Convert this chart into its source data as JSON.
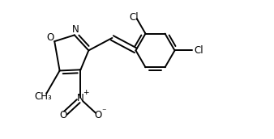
{
  "background_color": "#ffffff",
  "line_color": "#000000",
  "line_width": 1.4,
  "font_size": 8.5,
  "fig_width": 3.38,
  "fig_height": 1.72,
  "dpi": 100,
  "xlim": [
    -0.5,
    5.8
  ],
  "ylim": [
    -2.2,
    2.2
  ]
}
